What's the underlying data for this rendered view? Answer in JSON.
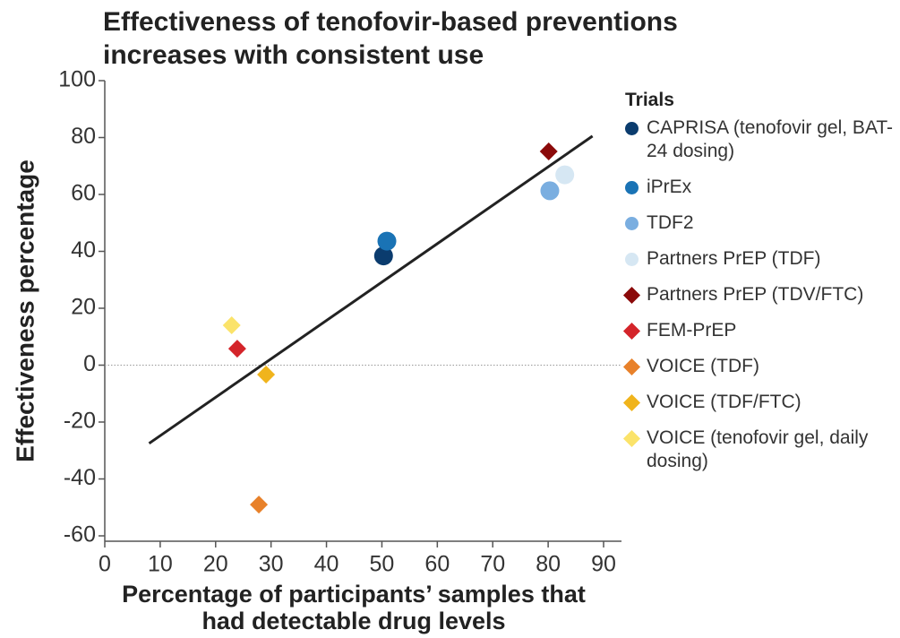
{
  "chart_data": {
    "type": "scatter",
    "title": "Effectiveness of tenofovir-based preventions increases with consistent use",
    "xlabel": "Percentage of participants’ samples that had detectable drug levels",
    "ylabel": "Effectiveness percentage",
    "legend_title": "Trials",
    "xlim": [
      0,
      90
    ],
    "xticks": [
      0,
      10,
      20,
      30,
      40,
      50,
      60,
      70,
      80,
      90
    ],
    "ylim": [
      -60,
      100
    ],
    "yticks": [
      -60,
      -40,
      -20,
      0,
      20,
      40,
      60,
      80,
      100
    ],
    "reference_line": 0,
    "trend_line": {
      "x": [
        8,
        88
      ],
      "y": [
        -27.5,
        80.5
      ],
      "color": "#222222"
    },
    "series": [
      {
        "name": "CAPRISA (tenofovir gel, BAT-24 dosing)",
        "color": "#0b3c6e",
        "marker": "circle",
        "x": [
          50.3
        ],
        "values": [
          38.4
        ]
      },
      {
        "name": "iPrEx",
        "color": "#1a73b5",
        "marker": "circle",
        "x": [
          50.9
        ],
        "values": [
          43.6
        ]
      },
      {
        "name": "TDF2",
        "color": "#7aaee0",
        "marker": "circle",
        "x": [
          80.3
        ],
        "values": [
          61.3
        ]
      },
      {
        "name": "Partners PrEP (TDF)",
        "color": "#d6e7f3",
        "marker": "circle",
        "x": [
          83
        ],
        "values": [
          66.9
        ]
      },
      {
        "name": "Partners PrEP (TDV/FTC)",
        "color": "#8b0a0a",
        "marker": "diamond",
        "x": [
          80.1
        ],
        "values": [
          75.1
        ]
      },
      {
        "name": "FEM-PrEP",
        "color": "#d4242a",
        "marker": "diamond",
        "x": [
          23.9
        ],
        "values": [
          5.8
        ]
      },
      {
        "name": "VOICE (TDF)",
        "color": "#e8812a",
        "marker": "diamond",
        "x": [
          27.8
        ],
        "values": [
          -49
        ]
      },
      {
        "name": "VOICE (TDF/FTC)",
        "color": "#f0b41c",
        "marker": "diamond",
        "x": [
          29.1
        ],
        "values": [
          -3.3
        ]
      },
      {
        "name": "VOICE (tenofovir gel, daily dosing)",
        "color": "#fbe36a",
        "marker": "diamond",
        "x": [
          22.9
        ],
        "values": [
          14
        ]
      }
    ]
  }
}
